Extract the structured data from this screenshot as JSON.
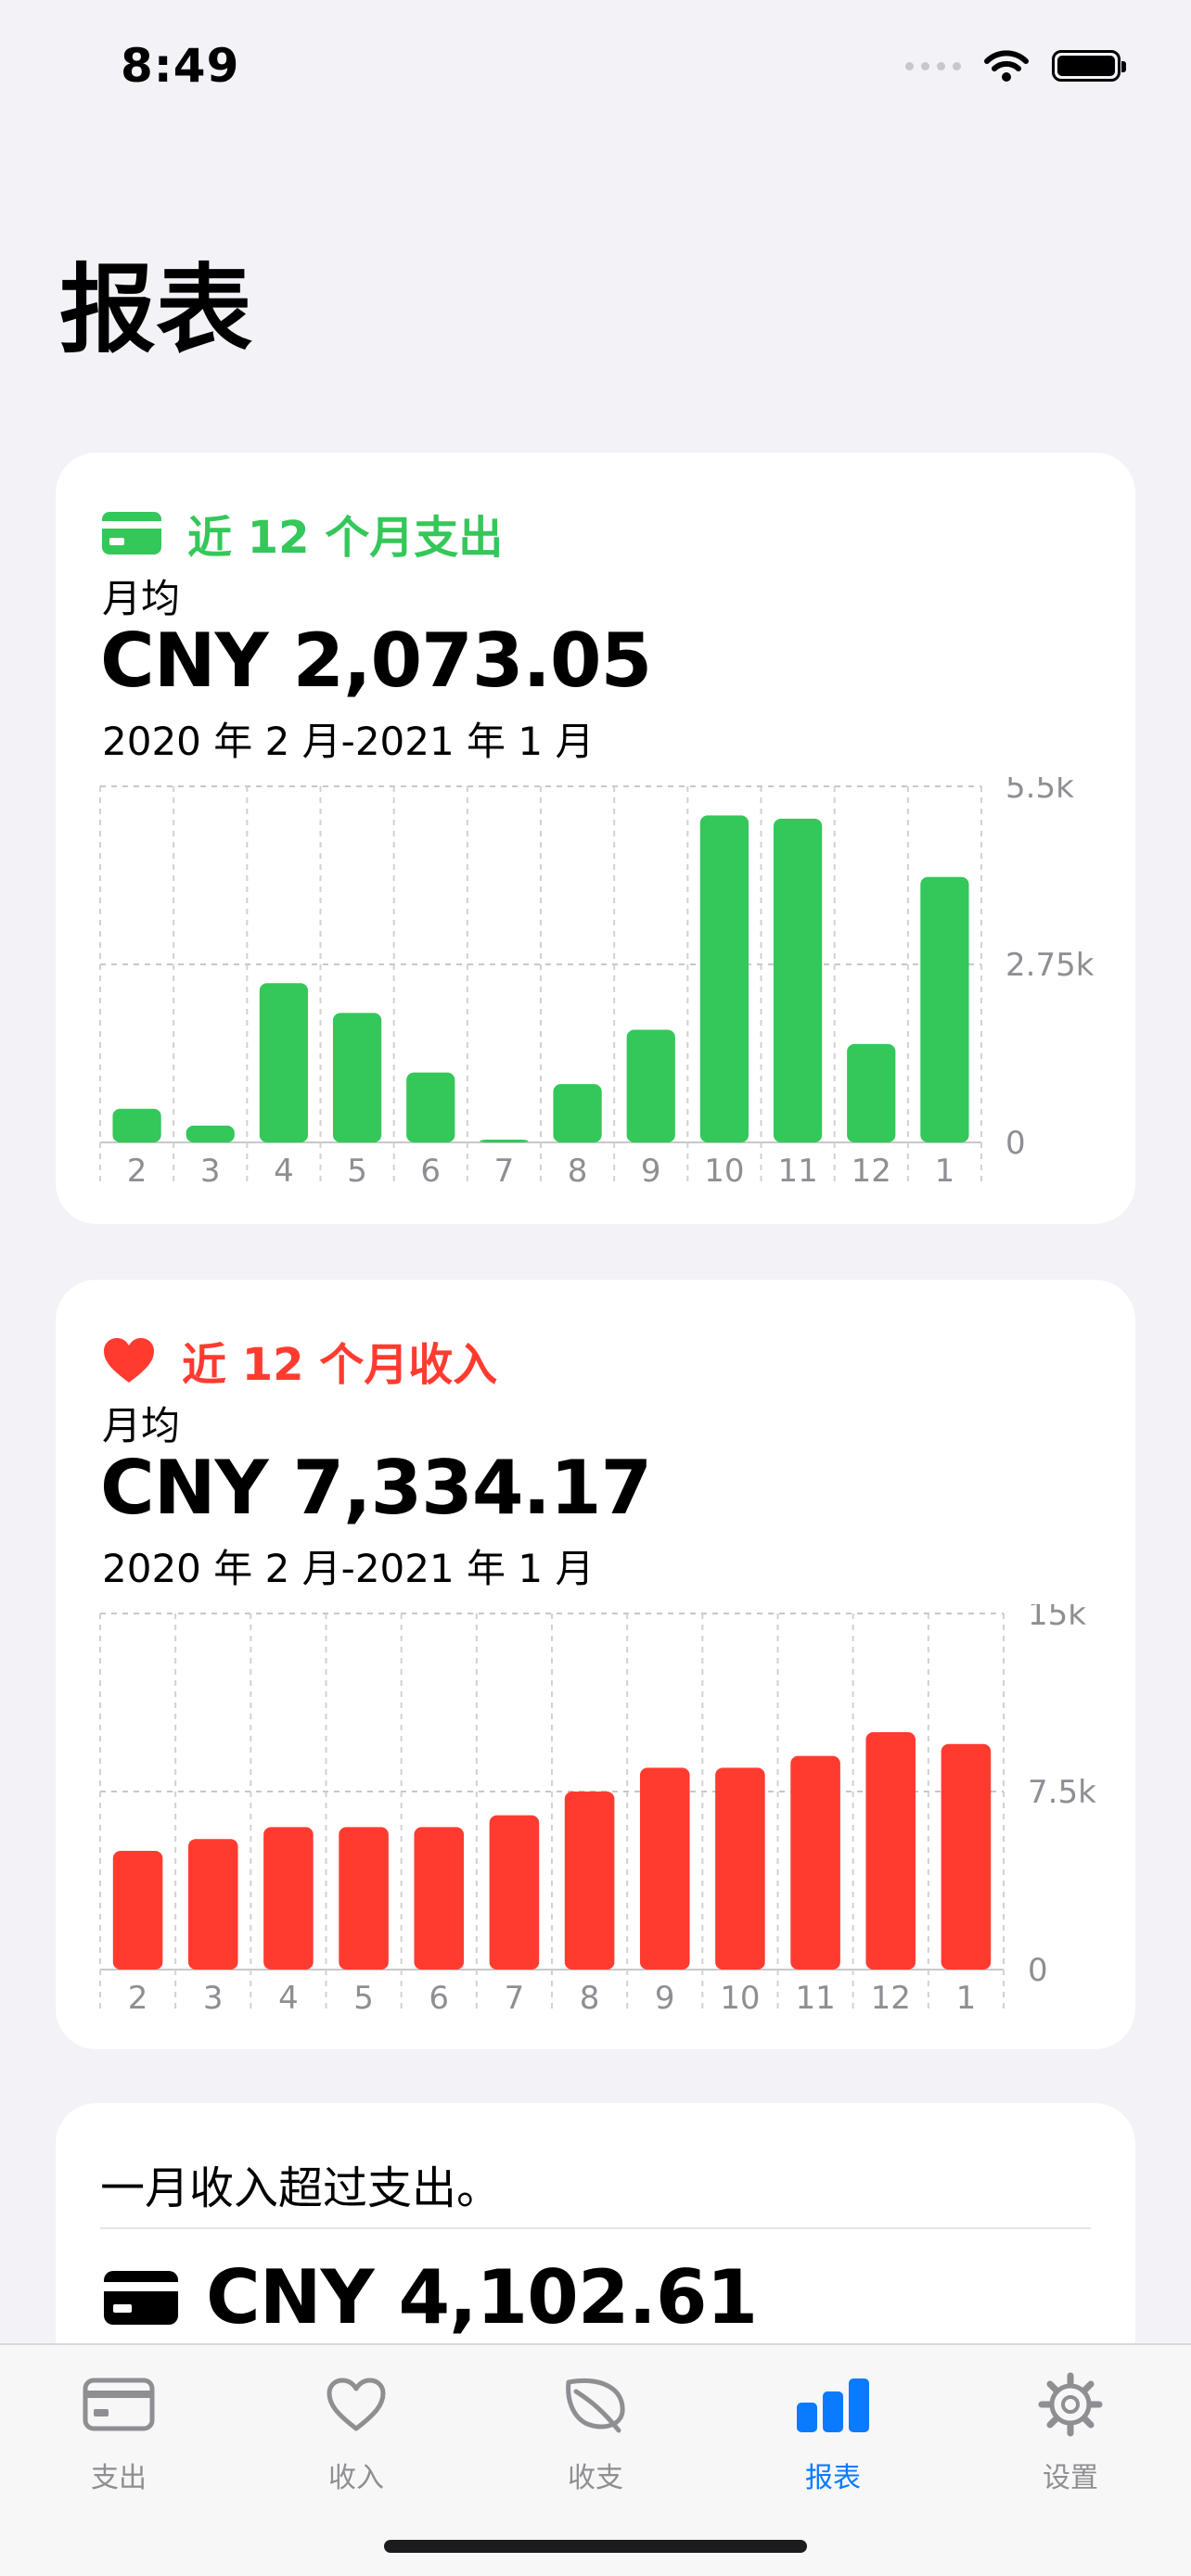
{
  "status_bar": {
    "time": "8:49"
  },
  "page": {
    "title": "报表"
  },
  "expense_card": {
    "title": "近 12 个月支出",
    "avg_label": "月均",
    "amount": "CNY 2,073.05",
    "period": "2020 年 2 月-2021 年 1 月",
    "accent": "#34C759"
  },
  "income_card": {
    "title": "近 12 个月收入",
    "avg_label": "月均",
    "amount": "CNY 7,334.17",
    "period": "2020 年 2 月-2021 年 1 月",
    "accent": "#FF3B30"
  },
  "summary_card": {
    "text": "一月收入超过支出。",
    "amount": "CNY 4,102.61"
  },
  "chart_data": [
    {
      "type": "bar",
      "categories": [
        "2",
        "3",
        "4",
        "5",
        "6",
        "7",
        "8",
        "9",
        "10",
        "11",
        "12",
        "1"
      ],
      "values": [
        520,
        260,
        2460,
        2000,
        1080,
        20,
        900,
        1740,
        5050,
        5000,
        1520,
        4100
      ],
      "yticks": [
        "5.5k",
        "2.75k",
        "0"
      ],
      "ylim": [
        0,
        5500
      ],
      "grid": true,
      "color": "#34C759"
    },
    {
      "type": "bar",
      "categories": [
        "2",
        "3",
        "4",
        "5",
        "6",
        "7",
        "8",
        "9",
        "10",
        "11",
        "12",
        "1"
      ],
      "values": [
        5000,
        5500,
        6000,
        6000,
        6000,
        6500,
        7500,
        8500,
        8500,
        9000,
        10000,
        9500
      ],
      "yticks": [
        "15k",
        "7.5k",
        "0"
      ],
      "ylim": [
        0,
        15000
      ],
      "grid": true,
      "color": "#FF3B30"
    }
  ],
  "tabbar": {
    "tabs": [
      {
        "label": "支出",
        "icon": "card-icon"
      },
      {
        "label": "收入",
        "icon": "heart-icon"
      },
      {
        "label": "收支",
        "icon": "leaf-icon"
      },
      {
        "label": "报表",
        "icon": "chart-bar-icon",
        "active": true
      },
      {
        "label": "设置",
        "icon": "gear-icon"
      }
    ]
  }
}
